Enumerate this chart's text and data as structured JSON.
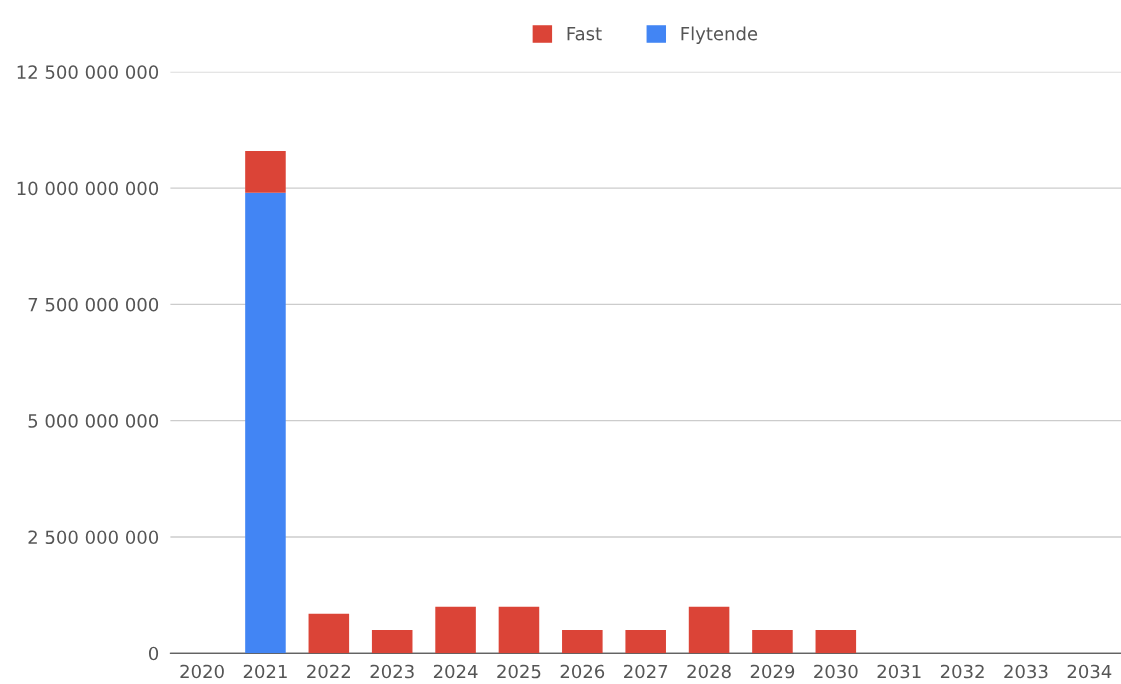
{
  "chart_data": {
    "type": "bar",
    "stacked": true,
    "categories": [
      "2020",
      "2021",
      "2022",
      "2023",
      "2024",
      "2025",
      "2026",
      "2027",
      "2028",
      "2029",
      "2030",
      "2031",
      "2032",
      "2033",
      "2034"
    ],
    "series": [
      {
        "name": "Flytende",
        "color": "#4285f4",
        "values": [
          0,
          9900000000,
          0,
          0,
          0,
          0,
          0,
          0,
          0,
          0,
          0,
          0,
          0,
          0,
          0
        ]
      },
      {
        "name": "Fast",
        "color": "#db4437",
        "values": [
          0,
          900000000,
          850000000,
          500000000,
          1000000000,
          1000000000,
          500000000,
          500000000,
          1000000000,
          500000000,
          500000000,
          0,
          0,
          0,
          0
        ]
      }
    ],
    "ylim": [
      0,
      12500000000
    ],
    "yticks": [
      {
        "value": 0,
        "label": "0"
      },
      {
        "value": 2500000000,
        "label": "2 500 000 000"
      },
      {
        "value": 5000000000,
        "label": "5 000 000 000"
      },
      {
        "value": 7500000000,
        "label": "7 500 000 000"
      },
      {
        "value": 10000000000,
        "label": "10 000 000 000"
      },
      {
        "value": 12500000000,
        "label": "12 500 000 000"
      }
    ],
    "grid": "y",
    "legend": "top"
  }
}
